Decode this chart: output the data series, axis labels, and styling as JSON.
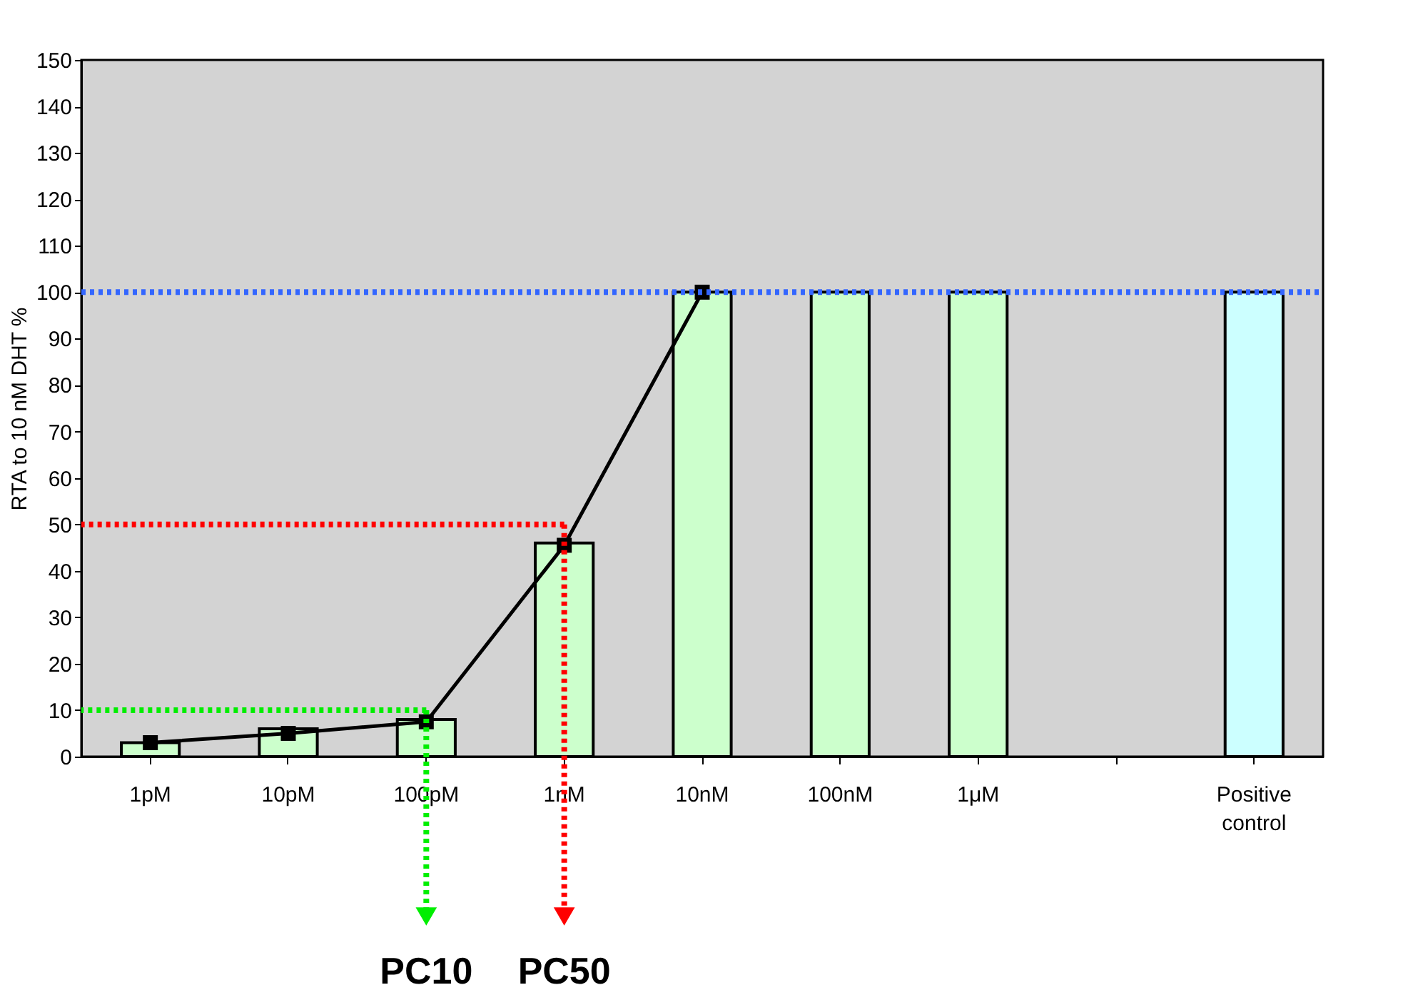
{
  "chart_data": {
    "type": "bar",
    "ylabel": "RTA to 10 nM DHT %",
    "categories": [
      "1pM",
      "10pM",
      "100pM",
      "1nM",
      "10nM",
      "100nM",
      "1μM",
      null,
      "Positive control"
    ],
    "series": [
      {
        "values": [
          3,
          6,
          8,
          46,
          100,
          100,
          100,
          null,
          100
        ],
        "colors": [
          "#ccffcc",
          "#ccffcc",
          "#ccffcc",
          "#ccffcc",
          "#ccffcc",
          "#ccffcc",
          "#ccffcc",
          "#ccffcc",
          "#ccffff"
        ]
      },
      {
        "type": "line",
        "color": "#000000",
        "marker": "square",
        "values": [
          3,
          5,
          7.5,
          45.5,
          100,
          null,
          null,
          null,
          null
        ]
      }
    ],
    "ylim": [
      0,
      150
    ],
    "yticks": [
      0,
      10,
      20,
      30,
      40,
      50,
      60,
      70,
      80,
      90,
      100,
      110,
      120,
      130,
      140,
      150
    ],
    "grid": false,
    "ref_lines": [
      {
        "axis": "y",
        "value": 100,
        "color": "#3366ff",
        "line_style": "dotted"
      },
      {
        "axis": "y",
        "value": 50,
        "color": "#ff0000",
        "line_style": "dotted"
      },
      {
        "axis": "y",
        "value": 10,
        "color": "#00ee00",
        "line_style": "dotted"
      }
    ],
    "annotations": [
      {
        "text": "PC10",
        "x": "100pM",
        "y": 10
      },
      {
        "text": "PC50",
        "x": "1nM",
        "y": 50
      }
    ]
  }
}
